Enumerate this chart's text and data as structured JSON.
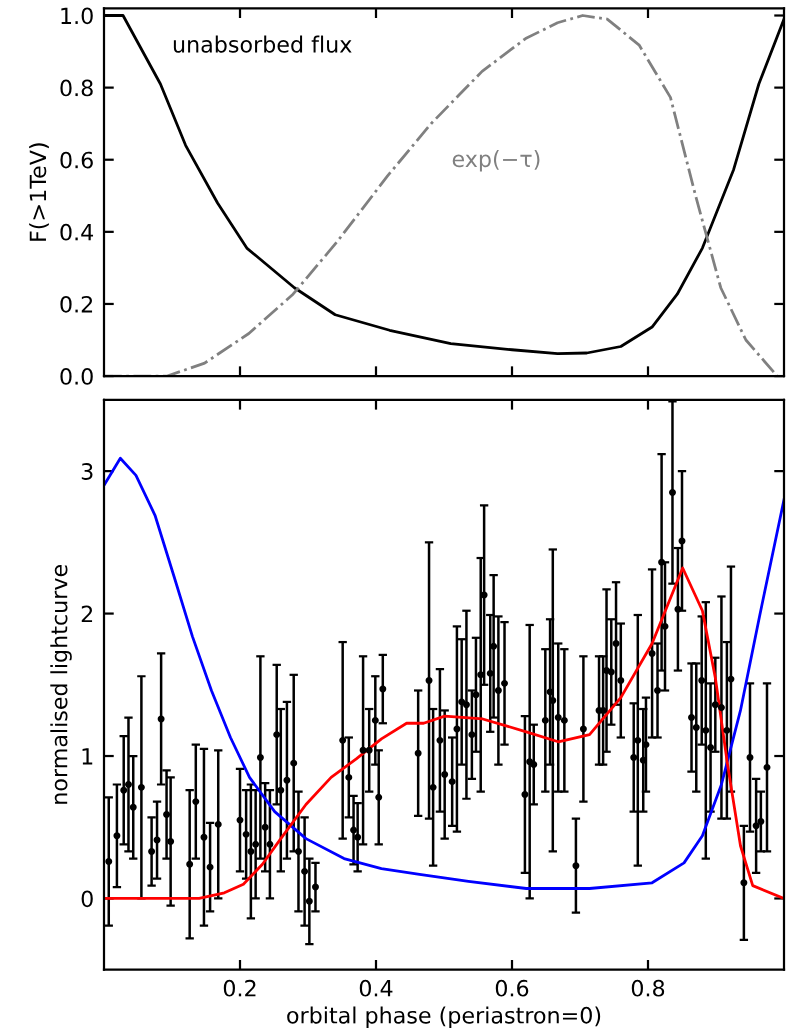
{
  "chart_data": [
    {
      "type": "line",
      "ylabel": "F(>1TeV)",
      "xlim": [
        0,
        1
      ],
      "ylim": [
        0,
        1.02
      ],
      "xticks": [
        {
          "value": 0.2,
          "label": null
        },
        {
          "value": 0.4,
          "label": null
        },
        {
          "value": 0.6,
          "label": null
        },
        {
          "value": 0.8,
          "label": null
        }
      ],
      "yticks": [
        {
          "value": 0,
          "label": "0.0"
        },
        0.2,
        0.4,
        0.6,
        0.8,
        {
          "value": 1,
          "label": "1.0"
        }
      ],
      "tick_labels": "y",
      "grid": false,
      "legend": "top left",
      "marker": "none",
      "series": [
        {
          "name": "unabsorbed flux",
          "color": "#000000",
          "line_style": "solid",
          "x": [
            0,
            0.028,
            0.083,
            0.12,
            0.167,
            0.21,
            0.28,
            0.34,
            0.42,
            0.51,
            0.6,
            0.667,
            0.71,
            0.76,
            0.806,
            0.843,
            0.88,
            0.926,
            0.963,
            1.0
          ],
          "values": [
            1.0,
            1.0,
            0.81,
            0.64,
            0.48,
            0.355,
            0.245,
            0.17,
            0.127,
            0.09,
            0.073,
            0.062,
            0.064,
            0.082,
            0.136,
            0.227,
            0.355,
            0.573,
            0.81,
            0.99
          ]
        },
        {
          "name": "exp(−τ)",
          "color": "#808080",
          "line_style": "dashdot",
          "x": [
            0,
            0.093,
            0.148,
            0.213,
            0.278,
            0.343,
            0.417,
            0.481,
            0.556,
            0.62,
            0.667,
            0.704,
            0.74,
            0.787,
            0.833,
            0.87,
            0.907,
            0.944,
            0.99
          ],
          "values": [
            0,
            0.0,
            0.036,
            0.118,
            0.227,
            0.373,
            0.555,
            0.7,
            0.845,
            0.936,
            0.98,
            1.0,
            0.99,
            0.918,
            0.773,
            0.5,
            0.245,
            0.1,
            0.0
          ]
        }
      ]
    },
    {
      "type": "line",
      "xlabel": "orbital phase (periastron=0)",
      "ylabel": "normalised lightcurve",
      "xlim": [
        0,
        1
      ],
      "ylim": [
        -0.5,
        3.5
      ],
      "xticks": [
        0.2,
        0.4,
        0.6,
        0.8
      ],
      "yticks": [
        0,
        1,
        2,
        3
      ],
      "grid": false,
      "marker": "none",
      "series": [
        {
          "type": "scatter",
          "color": "#000000",
          "marker": "circle",
          "x": [
            0.007,
            0.019,
            0.029,
            0.036,
            0.043,
            0.055,
            0.07,
            0.078,
            0.084,
            0.092,
            0.098,
            0.126,
            0.135,
            0.147,
            0.156,
            0.168,
            0.2,
            0.209,
            0.216,
            0.223,
            0.23,
            0.237,
            0.244,
            0.254,
            0.26,
            0.269,
            0.279,
            0.286,
            0.295,
            0.302,
            0.311,
            0.351,
            0.36,
            0.367,
            0.373,
            0.381,
            0.39,
            0.399,
            0.404,
            0.41,
            0.462,
            0.478,
            0.484,
            0.494,
            0.501,
            0.512,
            0.519,
            0.526,
            0.533,
            0.541,
            0.547,
            0.554,
            0.559,
            0.568,
            0.573,
            0.58,
            0.589,
            0.619,
            0.626,
            0.632,
            0.649,
            0.656,
            0.66,
            0.668,
            0.677,
            0.694,
            0.705,
            0.728,
            0.734,
            0.739,
            0.746,
            0.753,
            0.76,
            0.779,
            0.785,
            0.793,
            0.797,
            0.806,
            0.814,
            0.82,
            0.825,
            0.836,
            0.844,
            0.85,
            0.864,
            0.871,
            0.879,
            0.885,
            0.892,
            0.899,
            0.908,
            0.916,
            0.922,
            0.941,
            0.95,
            0.959,
            0.966,
            0.975
          ],
          "values": [
            0.26,
            0.44,
            0.76,
            0.8,
            0.64,
            0.78,
            0.33,
            0.41,
            1.26,
            0.59,
            0.4,
            0.24,
            0.68,
            0.43,
            0.22,
            0.52,
            0.55,
            0.45,
            0.33,
            0.38,
            0.99,
            0.5,
            0.38,
            1.15,
            0.76,
            0.83,
            0.95,
            0.33,
            0.19,
            -0.02,
            0.08,
            1.11,
            0.85,
            0.48,
            0.43,
            1.04,
            1.04,
            1.25,
            0.71,
            1.47,
            1.02,
            1.53,
            0.78,
            1.11,
            0.87,
            0.82,
            1.19,
            1.38,
            1.36,
            1.15,
            1.43,
            1.57,
            2.13,
            1.58,
            1.77,
            1.46,
            1.51,
            0.73,
            0.96,
            0.94,
            1.25,
            1.45,
            1.39,
            1.27,
            1.25,
            0.23,
            1.19,
            1.32,
            1.32,
            1.6,
            1.59,
            1.79,
            1.53,
            0.99,
            1.11,
            0.97,
            1.08,
            1.72,
            1.46,
            2.36,
            1.91,
            2.85,
            2.03,
            2.51,
            1.27,
            1.2,
            1.53,
            1.18,
            1.06,
            1.36,
            1.34,
            1.18,
            1.54,
            0.11,
            0.99,
            0.51,
            0.54,
            0.92
          ],
          "errors": [
            0.45,
            0.36,
            0.38,
            0.47,
            0.36,
            0.78,
            0.24,
            0.27,
            0.46,
            0.31,
            0.45,
            0.52,
            0.4,
            0.62,
            0.31,
            0.52,
            0.36,
            0.31,
            0.47,
            0.38,
            0.71,
            0.31,
            0.38,
            0.49,
            0.57,
            0.55,
            0.62,
            0.42,
            0.38,
            0.3,
            0.17,
            0.69,
            0.28,
            0.24,
            0.24,
            0.66,
            0.29,
            0.31,
            0.33,
            0.24,
            0.44,
            0.97,
            0.55,
            0.5,
            0.45,
            0.31,
            0.72,
            0.44,
            0.66,
            0.31,
            0.4,
            0.82,
            0.63,
            0.41,
            0.5,
            0.52,
            0.43,
            0.55,
            0.96,
            0.28,
            0.5,
            0.51,
            1.06,
            0.52,
            0.5,
            0.33,
            0.51,
            0.38,
            0.38,
            0.57,
            0.37,
            0.43,
            0.4,
            0.38,
            0.88,
            0.36,
            0.33,
            0.59,
            0.33,
            0.76,
            0.45,
            0.64,
            0.43,
            0.49,
            0.38,
            0.45,
            0.45,
            0.9,
            0.45,
            0.33,
            0.78,
            0.62,
            0.79,
            0.4,
            0.52,
            0.33,
            0.21,
            0.59
          ]
        },
        {
          "type": "line",
          "color": "#0000ff",
          "line_style": "solid",
          "x": [
            0,
            0.024,
            0.047,
            0.075,
            0.103,
            0.13,
            0.158,
            0.186,
            0.214,
            0.251,
            0.297,
            0.353,
            0.408,
            0.464,
            0.536,
            0.621,
            0.714,
            0.806,
            0.853,
            0.88,
            0.908,
            0.936,
            0.964,
            1.0
          ],
          "values": [
            2.9,
            3.09,
            2.97,
            2.69,
            2.26,
            1.84,
            1.46,
            1.13,
            0.85,
            0.61,
            0.42,
            0.28,
            0.21,
            0.17,
            0.12,
            0.07,
            0.07,
            0.11,
            0.25,
            0.44,
            0.8,
            1.32,
            1.98,
            2.8
          ]
        },
        {
          "type": "line",
          "color": "#ff0000",
          "line_style": "solid",
          "x": [
            0,
            0.14,
            0.177,
            0.205,
            0.233,
            0.26,
            0.297,
            0.334,
            0.371,
            0.408,
            0.445,
            0.47,
            0.501,
            0.557,
            0.621,
            0.668,
            0.714,
            0.76,
            0.806,
            0.851,
            0.88,
            0.899,
            0.917,
            0.936,
            0.954,
            1.0
          ],
          "values": [
            0,
            0,
            0.04,
            0.1,
            0.24,
            0.42,
            0.66,
            0.85,
            0.98,
            1.12,
            1.23,
            1.23,
            1.28,
            1.26,
            1.17,
            1.1,
            1.15,
            1.41,
            1.79,
            2.32,
            2.02,
            1.55,
            0.94,
            0.37,
            0.09,
            0.0
          ]
        }
      ]
    }
  ]
}
